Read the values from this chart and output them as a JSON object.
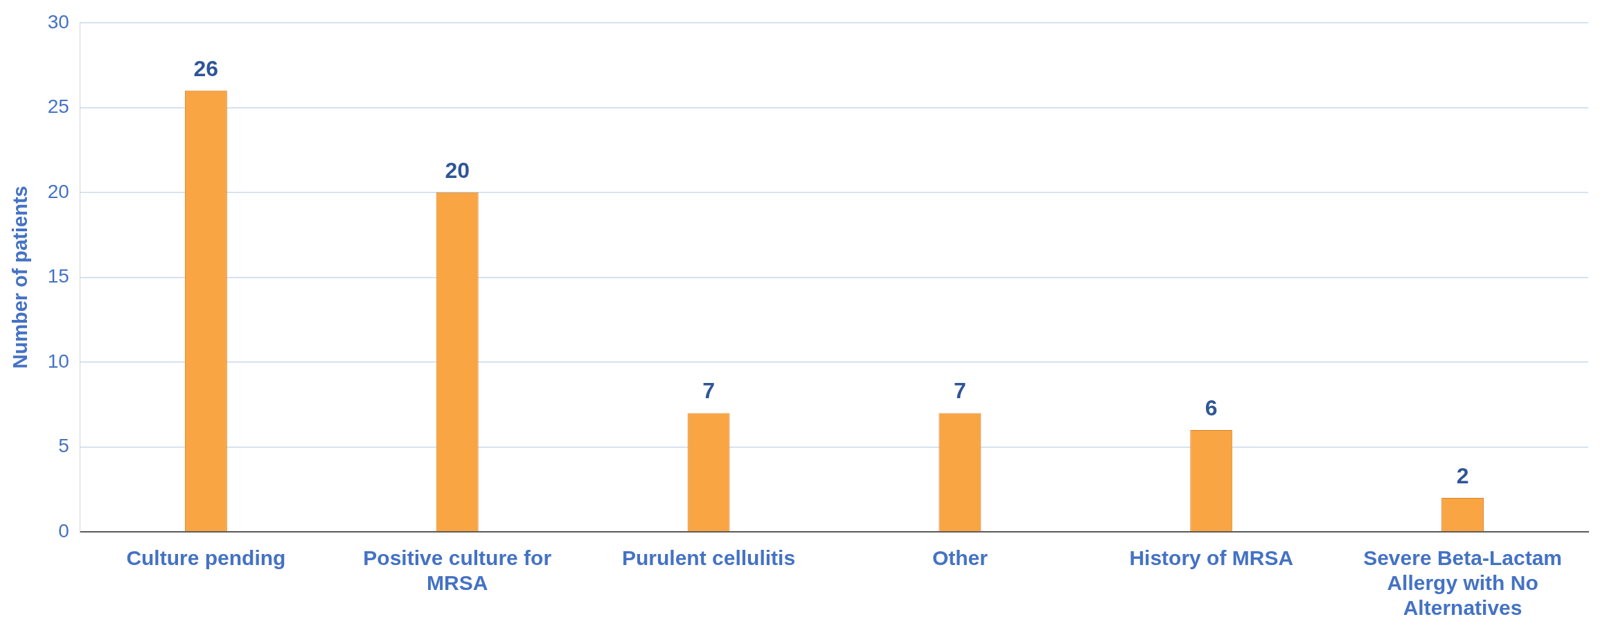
{
  "chart_data": {
    "type": "bar",
    "ylabel": "Number of patients",
    "categories": [
      "Culture pending",
      "Positive culture for MRSA",
      "Purulent cellulitis",
      "Other",
      "History of MRSA",
      "Severe Beta-Lactam Allergy with No Alternatives"
    ],
    "values": [
      26,
      20,
      7,
      7,
      6,
      2
    ],
    "color": "#f9a544",
    "ylim": [
      0,
      30
    ],
    "yticks": [
      0,
      5,
      10,
      15,
      20,
      25,
      30
    ],
    "grid": "y",
    "data_labels": true,
    "legend": false
  }
}
